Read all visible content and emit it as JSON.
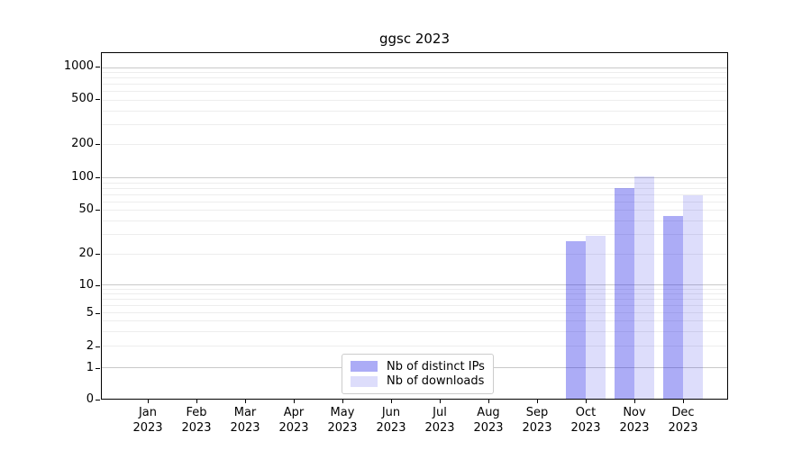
{
  "chart_data": {
    "type": "bar",
    "title": "ggsc 2023",
    "year": "2023",
    "categories": [
      "Jan",
      "Feb",
      "Mar",
      "Apr",
      "May",
      "Jun",
      "Jul",
      "Aug",
      "Sep",
      "Oct",
      "Nov",
      "Dec"
    ],
    "series": [
      {
        "name": "Nb of distinct IPs",
        "color": "#1e1ee6",
        "alpha": 0.37,
        "values": [
          0,
          0,
          0,
          0,
          0,
          0,
          0,
          0,
          0,
          26,
          79,
          44
        ]
      },
      {
        "name": "Nb of downloads",
        "color": "#1e1ee6",
        "alpha": 0.15,
        "values": [
          0,
          0,
          0,
          0,
          0,
          0,
          0,
          0,
          0,
          29,
          102,
          68
        ]
      }
    ],
    "y_ticks": [
      0,
      1,
      2,
      5,
      10,
      20,
      50,
      100,
      200,
      500,
      1000
    ],
    "y_scale": "log",
    "ylim": [
      0,
      1350
    ],
    "xlabel": "",
    "ylabel": "",
    "grid": true,
    "legend_position": "lower center",
    "axis_color": "#000000",
    "major_grid_color": "#c9c9c9",
    "minor_grid_color": "#ededed"
  }
}
